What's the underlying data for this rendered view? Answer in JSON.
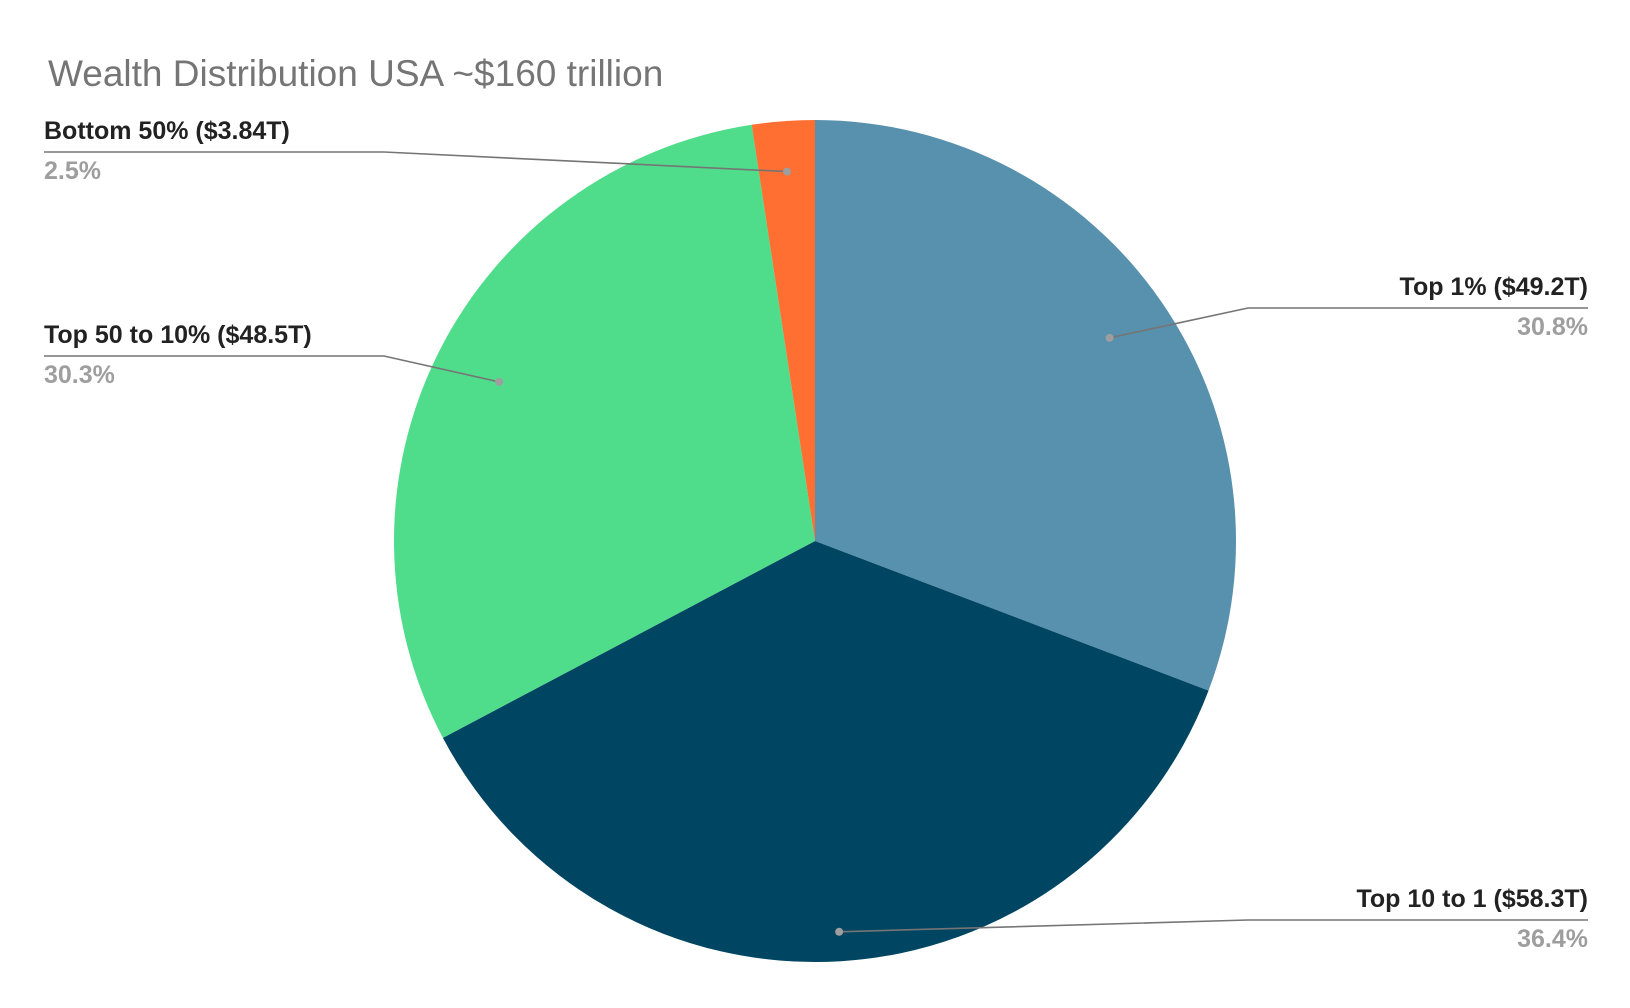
{
  "chart_data": {
    "type": "pie",
    "title": "Wealth Distribution USA ~$160 trillion",
    "start_angle_deg": 0,
    "direction": "clockwise",
    "legend": "none",
    "slices": [
      {
        "label": "Top 1% ($49.2T)",
        "value": 49.2,
        "percent_label": "30.8%",
        "color": "#5891AD"
      },
      {
        "label": "Top 10 to 1 ($58.3T)",
        "value": 58.3,
        "percent_label": "36.4%",
        "color": "#004561"
      },
      {
        "label": "Top 50 to 10% ($48.5T)",
        "value": 48.5,
        "percent_label": "30.3%",
        "color": "#4FDD8B"
      },
      {
        "label": "Bottom 50% ($3.84T)",
        "value": 3.84,
        "percent_label": "2.5%",
        "color": "#FF6F31"
      }
    ]
  }
}
